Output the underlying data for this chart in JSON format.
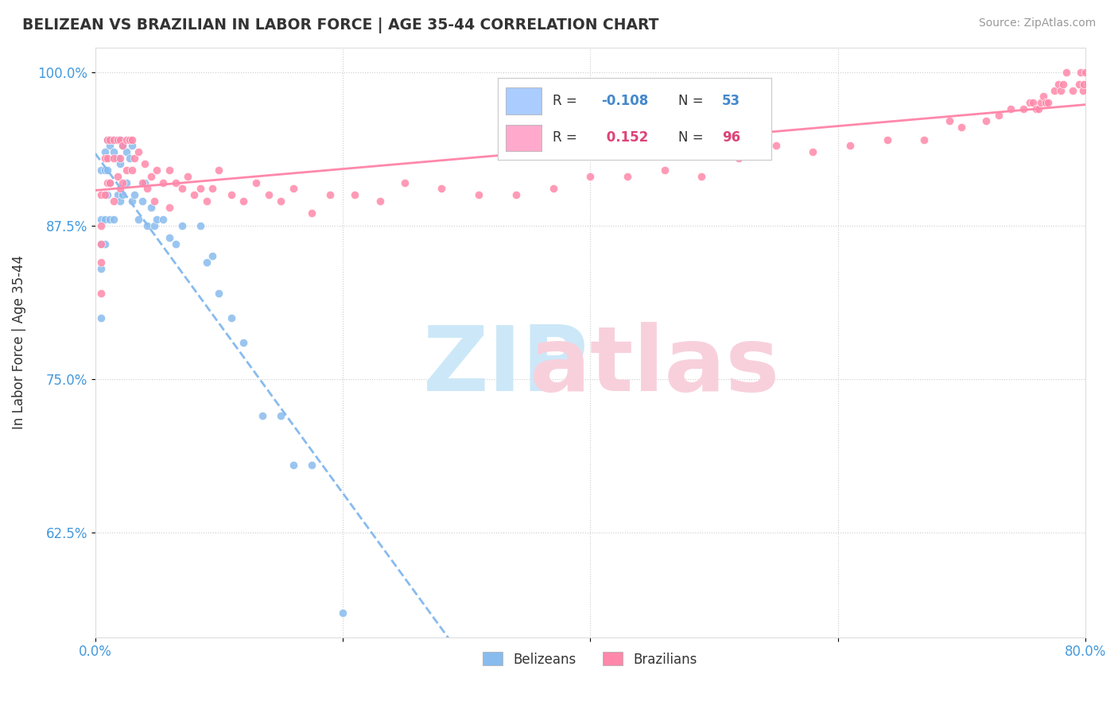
{
  "title": "BELIZEAN VS BRAZILIAN IN LABOR FORCE | AGE 35-44 CORRELATION CHART",
  "source_text": "Source: ZipAtlas.com",
  "ylabel": "In Labor Force | Age 35-44",
  "xlim": [
    0.0,
    0.8
  ],
  "ylim": [
    0.54,
    1.02
  ],
  "xticks": [
    0.0,
    0.2,
    0.4,
    0.6,
    0.8
  ],
  "xtick_labels": [
    "0.0%",
    "",
    "",
    "",
    "80.0%"
  ],
  "ytick_labels": [
    "62.5%",
    "75.0%",
    "87.5%",
    "100.0%"
  ],
  "yticks": [
    0.625,
    0.75,
    0.875,
    1.0
  ],
  "r_belizean": -0.108,
  "n_belizean": 53,
  "r_brazilian": 0.152,
  "n_brazilian": 96,
  "color_belizean": "#88bbee",
  "color_brazilian": "#ff88aa",
  "legend_box_color_belizean": "#aaccff",
  "legend_box_color_brazilian": "#ffaacc",
  "watermark_zip_color": "#cce8f8",
  "watermark_atlas_color": "#f8d0dc",
  "tick_color": "#4499dd",
  "title_color": "#333333",
  "source_color": "#999999",
  "grid_color": "#cccccc",
  "spine_color": "#dddddd",
  "belizean_scatter": {
    "x": [
      0.005,
      0.005,
      0.005,
      0.005,
      0.005,
      0.008,
      0.008,
      0.008,
      0.008,
      0.01,
      0.01,
      0.01,
      0.012,
      0.012,
      0.012,
      0.015,
      0.015,
      0.015,
      0.018,
      0.018,
      0.02,
      0.02,
      0.02,
      0.022,
      0.022,
      0.025,
      0.025,
      0.028,
      0.03,
      0.03,
      0.032,
      0.035,
      0.038,
      0.04,
      0.042,
      0.045,
      0.048,
      0.05,
      0.055,
      0.06,
      0.065,
      0.07,
      0.085,
      0.09,
      0.095,
      0.1,
      0.11,
      0.12,
      0.135,
      0.15,
      0.16,
      0.175,
      0.2
    ],
    "y": [
      0.92,
      0.88,
      0.86,
      0.84,
      0.8,
      0.935,
      0.92,
      0.88,
      0.86,
      0.945,
      0.92,
      0.9,
      0.94,
      0.91,
      0.88,
      0.945,
      0.935,
      0.88,
      0.93,
      0.9,
      0.945,
      0.925,
      0.895,
      0.94,
      0.9,
      0.935,
      0.91,
      0.93,
      0.94,
      0.895,
      0.9,
      0.88,
      0.895,
      0.91,
      0.875,
      0.89,
      0.875,
      0.88,
      0.88,
      0.865,
      0.86,
      0.875,
      0.875,
      0.845,
      0.85,
      0.82,
      0.8,
      0.78,
      0.72,
      0.72,
      0.68,
      0.68,
      0.56
    ]
  },
  "brazilian_scatter": {
    "x": [
      0.005,
      0.005,
      0.005,
      0.005,
      0.005,
      0.008,
      0.008,
      0.01,
      0.01,
      0.01,
      0.012,
      0.012,
      0.015,
      0.015,
      0.015,
      0.018,
      0.018,
      0.02,
      0.02,
      0.02,
      0.022,
      0.022,
      0.025,
      0.025,
      0.028,
      0.03,
      0.03,
      0.032,
      0.035,
      0.038,
      0.04,
      0.042,
      0.045,
      0.048,
      0.05,
      0.055,
      0.06,
      0.06,
      0.065,
      0.07,
      0.075,
      0.08,
      0.085,
      0.09,
      0.095,
      0.1,
      0.11,
      0.12,
      0.13,
      0.14,
      0.15,
      0.16,
      0.175,
      0.19,
      0.21,
      0.23,
      0.25,
      0.28,
      0.31,
      0.34,
      0.37,
      0.4,
      0.43,
      0.46,
      0.49,
      0.52,
      0.55,
      0.58,
      0.61,
      0.64,
      0.67,
      0.69,
      0.7,
      0.72,
      0.73,
      0.74,
      0.75,
      0.755,
      0.758,
      0.76,
      0.762,
      0.764,
      0.766,
      0.768,
      0.77,
      0.775,
      0.778,
      0.78,
      0.782,
      0.785,
      0.79,
      0.795,
      0.796,
      0.798,
      0.799,
      0.8
    ],
    "y": [
      0.9,
      0.875,
      0.86,
      0.845,
      0.82,
      0.93,
      0.9,
      0.945,
      0.93,
      0.91,
      0.945,
      0.91,
      0.945,
      0.93,
      0.895,
      0.945,
      0.915,
      0.945,
      0.93,
      0.905,
      0.94,
      0.91,
      0.945,
      0.92,
      0.945,
      0.945,
      0.92,
      0.93,
      0.935,
      0.91,
      0.925,
      0.905,
      0.915,
      0.895,
      0.92,
      0.91,
      0.92,
      0.89,
      0.91,
      0.905,
      0.915,
      0.9,
      0.905,
      0.895,
      0.905,
      0.92,
      0.9,
      0.895,
      0.91,
      0.9,
      0.895,
      0.905,
      0.885,
      0.9,
      0.9,
      0.895,
      0.91,
      0.905,
      0.9,
      0.9,
      0.905,
      0.915,
      0.915,
      0.92,
      0.915,
      0.93,
      0.94,
      0.935,
      0.94,
      0.945,
      0.945,
      0.96,
      0.955,
      0.96,
      0.965,
      0.97,
      0.97,
      0.975,
      0.975,
      0.97,
      0.97,
      0.975,
      0.98,
      0.975,
      0.975,
      0.985,
      0.99,
      0.985,
      0.99,
      1.0,
      0.985,
      0.99,
      1.0,
      0.985,
      0.99,
      1.0
    ]
  }
}
